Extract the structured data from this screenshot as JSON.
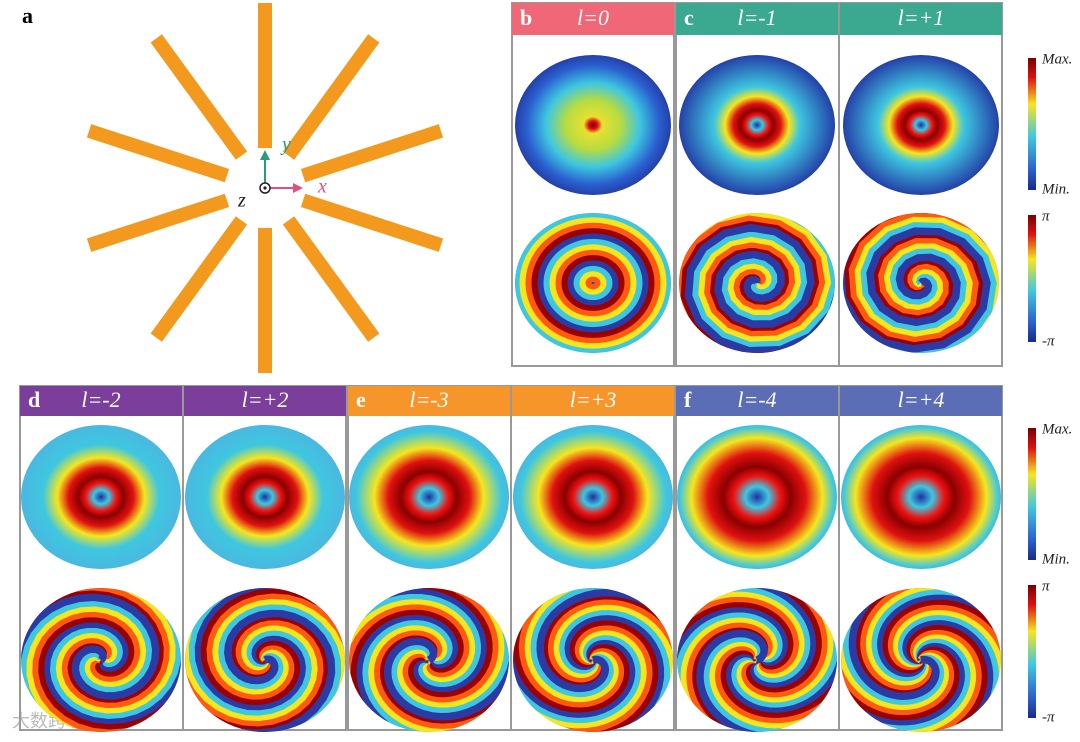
{
  "panel_a": {
    "label": "a",
    "axes": {
      "x": "x",
      "y": "y",
      "z": "z"
    }
  },
  "top_row": {
    "panels": [
      {
        "label": "b",
        "color": "#f06878",
        "modes": [
          "l=0"
        ]
      },
      {
        "label": "c",
        "color": "#3aa98f",
        "modes": [
          "l=-1",
          "l=+1"
        ]
      }
    ],
    "colorbars": {
      "intensity": {
        "max": "Max.",
        "min": "Min."
      },
      "phase": {
        "max": "π",
        "min": "-π"
      }
    }
  },
  "bottom_row": {
    "panels": [
      {
        "label": "d",
        "color": "#7b3f9b",
        "modes": [
          "l=-2",
          "l=+2"
        ]
      },
      {
        "label": "e",
        "color": "#f5952a",
        "modes": [
          "l=-3",
          "l=+3"
        ]
      },
      {
        "label": "f",
        "color": "#5b6db4",
        "modes": [
          "l=-4",
          "l=+4"
        ]
      }
    ],
    "colorbars": {
      "intensity": {
        "max": "Max.",
        "min": "Min."
      },
      "phase": {
        "max": "π",
        "min": "-π"
      }
    }
  },
  "watermark": "大数跨境"
}
